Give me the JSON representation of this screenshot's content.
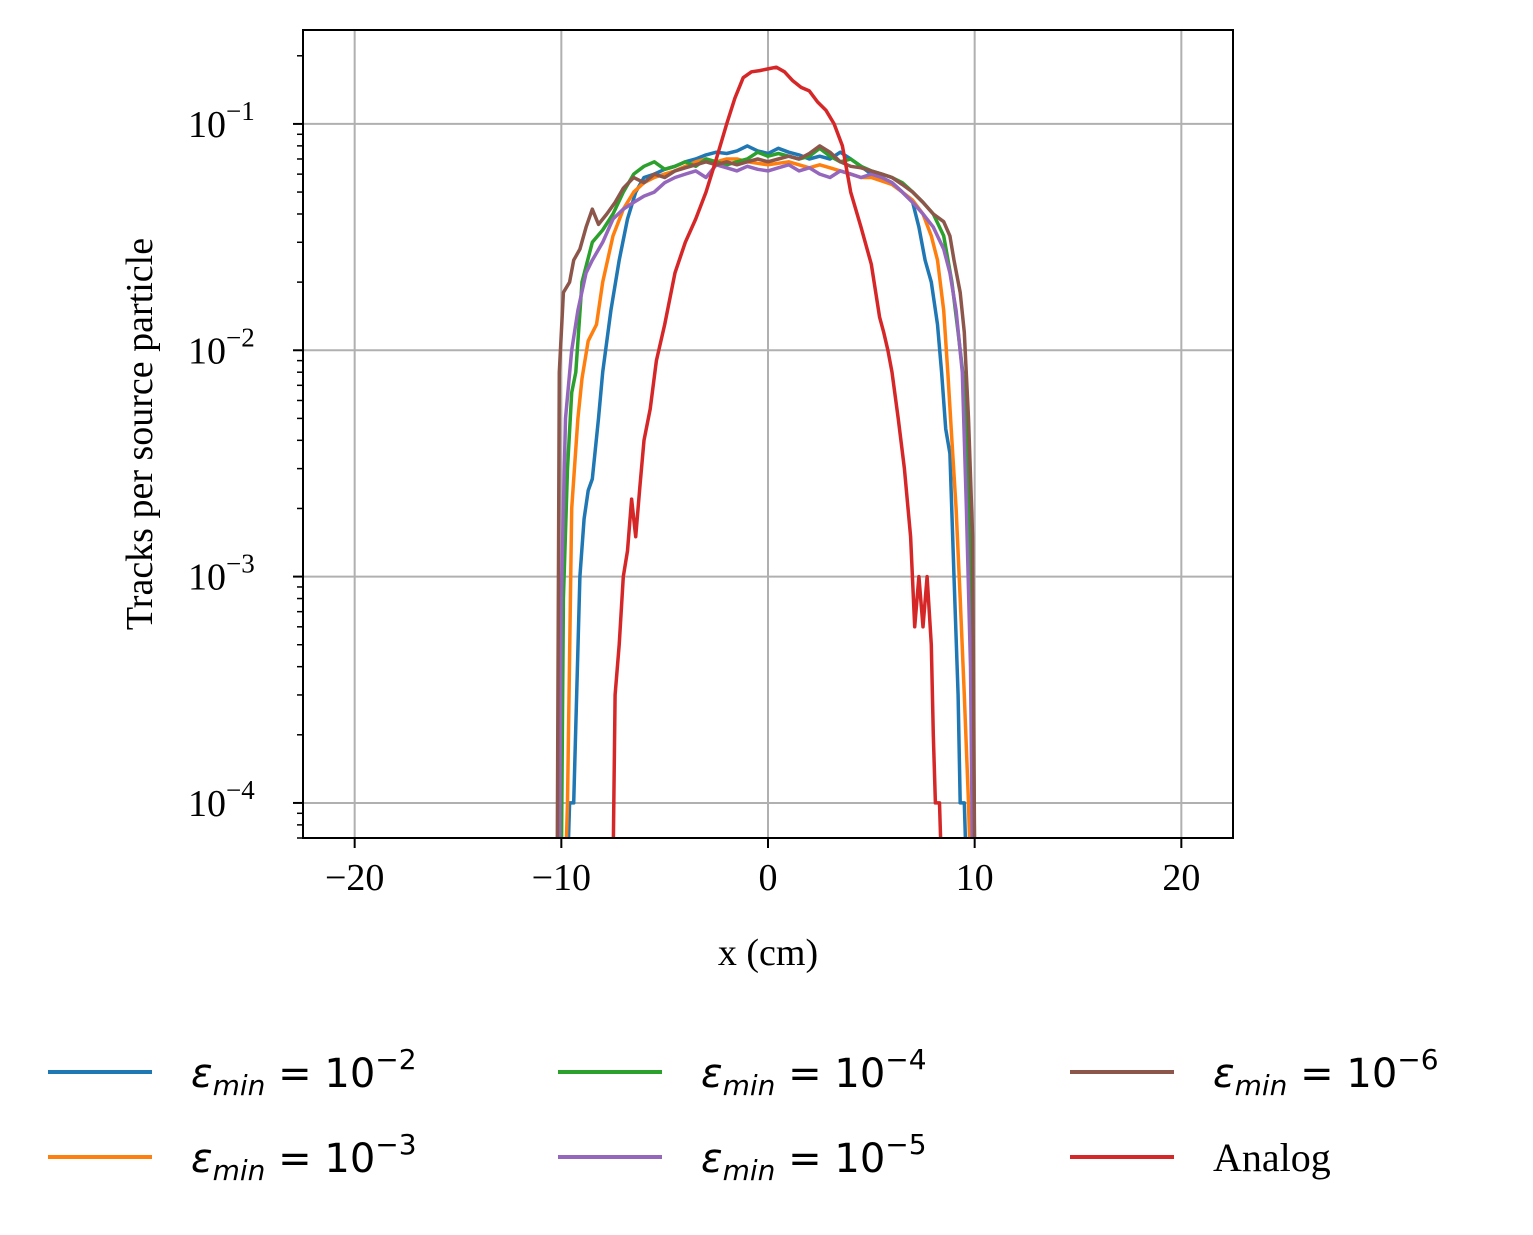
{
  "chart_data": {
    "type": "line",
    "title": "",
    "xlabel": "x (cm)",
    "ylabel": "Tracks per source particle",
    "xlim": [
      -22.5,
      22.5
    ],
    "ylim": [
      7e-05,
      0.26
    ],
    "yscale": "log",
    "grid": true,
    "x_ticks": [
      -20,
      -10,
      0,
      10,
      20
    ],
    "x_tick_labels": [
      "−20",
      "−10",
      "0",
      "10",
      "20"
    ],
    "y_ticks": [
      {
        "value": 0.1,
        "base": "10",
        "exp": "−1"
      },
      {
        "value": 0.01,
        "base": "10",
        "exp": "−2"
      },
      {
        "value": 0.001,
        "base": "10",
        "exp": "−3"
      },
      {
        "value": 0.0001,
        "base": "10",
        "exp": "−4"
      }
    ],
    "legend_placement": "below",
    "legend_columns": 3,
    "series": [
      {
        "name": "εmin = 10⁻²",
        "label_symbol": "ε",
        "label_sub": "min",
        "label_text": " = 10",
        "label_exp": "−2",
        "color": "#1f77b4",
        "points": [
          [
            -9.7,
            5e-05
          ],
          [
            -9.6,
            0.0001
          ],
          [
            -9.4,
            0.0001
          ],
          [
            -9.1,
            0.001
          ],
          [
            -8.9,
            0.0018
          ],
          [
            -8.7,
            0.0024
          ],
          [
            -8.5,
            0.0027
          ],
          [
            -8.2,
            0.005
          ],
          [
            -8.0,
            0.008
          ],
          [
            -7.6,
            0.015
          ],
          [
            -7.2,
            0.025
          ],
          [
            -6.8,
            0.038
          ],
          [
            -6.4,
            0.05
          ],
          [
            -6.0,
            0.058
          ],
          [
            -5.5,
            0.06
          ],
          [
            -5.0,
            0.063
          ],
          [
            -4.5,
            0.065
          ],
          [
            -4.0,
            0.068
          ],
          [
            -3.5,
            0.07
          ],
          [
            -3.0,
            0.073
          ],
          [
            -2.5,
            0.075
          ],
          [
            -2.0,
            0.074
          ],
          [
            -1.5,
            0.076
          ],
          [
            -1.0,
            0.08
          ],
          [
            -0.5,
            0.076
          ],
          [
            0.0,
            0.074
          ],
          [
            0.5,
            0.078
          ],
          [
            1.0,
            0.075
          ],
          [
            1.5,
            0.073
          ],
          [
            2.0,
            0.07
          ],
          [
            2.5,
            0.072
          ],
          [
            3.0,
            0.07
          ],
          [
            3.5,
            0.075
          ],
          [
            4.0,
            0.07
          ],
          [
            4.5,
            0.065
          ],
          [
            5.0,
            0.06
          ],
          [
            5.5,
            0.058
          ],
          [
            6.0,
            0.055
          ],
          [
            6.5,
            0.05
          ],
          [
            7.0,
            0.045
          ],
          [
            7.3,
            0.035
          ],
          [
            7.6,
            0.025
          ],
          [
            7.9,
            0.02
          ],
          [
            8.2,
            0.013
          ],
          [
            8.4,
            0.008
          ],
          [
            8.6,
            0.0045
          ],
          [
            8.8,
            0.0035
          ],
          [
            9.0,
            0.001
          ],
          [
            9.2,
            0.0003
          ],
          [
            9.3,
            0.0001
          ],
          [
            9.5,
            0.0001
          ],
          [
            9.6,
            5e-05
          ]
        ]
      },
      {
        "name": "εmin = 10⁻³",
        "label_symbol": "ε",
        "label_sub": "min",
        "label_text": " = 10",
        "label_exp": "−3",
        "color": "#ff7f0e",
        "points": [
          [
            -9.8,
            5e-05
          ],
          [
            -9.7,
            0.0001
          ],
          [
            -9.5,
            0.002
          ],
          [
            -9.2,
            0.005
          ],
          [
            -9.0,
            0.0075
          ],
          [
            -8.7,
            0.011
          ],
          [
            -8.3,
            0.013
          ],
          [
            -8.0,
            0.02
          ],
          [
            -7.5,
            0.032
          ],
          [
            -7.0,
            0.042
          ],
          [
            -6.5,
            0.05
          ],
          [
            -6.0,
            0.055
          ],
          [
            -5.5,
            0.058
          ],
          [
            -5.0,
            0.06
          ],
          [
            -4.5,
            0.062
          ],
          [
            -4.0,
            0.065
          ],
          [
            -3.5,
            0.068
          ],
          [
            -3.0,
            0.07
          ],
          [
            -2.5,
            0.068
          ],
          [
            -2.0,
            0.07
          ],
          [
            -1.5,
            0.07
          ],
          [
            -1.0,
            0.068
          ],
          [
            -0.5,
            0.067
          ],
          [
            0.0,
            0.066
          ],
          [
            0.5,
            0.067
          ],
          [
            1.0,
            0.068
          ],
          [
            1.5,
            0.066
          ],
          [
            2.0,
            0.064
          ],
          [
            2.5,
            0.066
          ],
          [
            3.0,
            0.064
          ],
          [
            3.5,
            0.062
          ],
          [
            4.0,
            0.06
          ],
          [
            4.5,
            0.058
          ],
          [
            5.0,
            0.058
          ],
          [
            5.5,
            0.056
          ],
          [
            6.0,
            0.054
          ],
          [
            6.5,
            0.05
          ],
          [
            7.0,
            0.046
          ],
          [
            7.5,
            0.04
          ],
          [
            7.9,
            0.032
          ],
          [
            8.2,
            0.025
          ],
          [
            8.5,
            0.015
          ],
          [
            8.7,
            0.008
          ],
          [
            8.9,
            0.004
          ],
          [
            9.1,
            0.002
          ],
          [
            9.3,
            0.0008
          ],
          [
            9.5,
            0.0003
          ],
          [
            9.7,
            0.0001
          ],
          [
            9.8,
            5e-05
          ]
        ]
      },
      {
        "name": "εmin = 10⁻⁴",
        "label_symbol": "ε",
        "label_sub": "min",
        "label_text": " = 10",
        "label_exp": "−4",
        "color": "#2ca02c",
        "points": [
          [
            -10.0,
            5e-05
          ],
          [
            -9.9,
            0.0008
          ],
          [
            -9.7,
            0.003
          ],
          [
            -9.5,
            0.0065
          ],
          [
            -9.3,
            0.008
          ],
          [
            -9.0,
            0.02
          ],
          [
            -8.5,
            0.03
          ],
          [
            -8.0,
            0.034
          ],
          [
            -7.5,
            0.04
          ],
          [
            -7.0,
            0.05
          ],
          [
            -6.5,
            0.06
          ],
          [
            -6.0,
            0.065
          ],
          [
            -5.5,
            0.068
          ],
          [
            -5.0,
            0.063
          ],
          [
            -4.5,
            0.065
          ],
          [
            -4.0,
            0.068
          ],
          [
            -3.5,
            0.065
          ],
          [
            -3.0,
            0.07
          ],
          [
            -2.5,
            0.068
          ],
          [
            -2.0,
            0.066
          ],
          [
            -1.5,
            0.068
          ],
          [
            -1.0,
            0.07
          ],
          [
            -0.5,
            0.075
          ],
          [
            0.0,
            0.072
          ],
          [
            0.5,
            0.074
          ],
          [
            1.0,
            0.072
          ],
          [
            1.5,
            0.07
          ],
          [
            2.0,
            0.072
          ],
          [
            2.5,
            0.078
          ],
          [
            3.0,
            0.072
          ],
          [
            3.5,
            0.068
          ],
          [
            4.0,
            0.07
          ],
          [
            4.5,
            0.065
          ],
          [
            5.0,
            0.062
          ],
          [
            5.5,
            0.06
          ],
          [
            6.0,
            0.058
          ],
          [
            6.5,
            0.055
          ],
          [
            7.0,
            0.05
          ],
          [
            7.5,
            0.045
          ],
          [
            8.0,
            0.04
          ],
          [
            8.5,
            0.032
          ],
          [
            8.9,
            0.02
          ],
          [
            9.2,
            0.012
          ],
          [
            9.5,
            0.007
          ],
          [
            9.7,
            0.002
          ],
          [
            9.9,
            0.0005
          ],
          [
            10.0,
            5e-05
          ]
        ]
      },
      {
        "name": "εmin = 10⁻⁵",
        "label_symbol": "ε",
        "label_sub": "min",
        "label_text": " = 10",
        "label_exp": "−5",
        "color": "#9467bd",
        "points": [
          [
            -10.1,
            5e-05
          ],
          [
            -10.0,
            0.0008
          ],
          [
            -9.8,
            0.005
          ],
          [
            -9.5,
            0.01
          ],
          [
            -9.2,
            0.015
          ],
          [
            -8.8,
            0.022
          ],
          [
            -8.5,
            0.025
          ],
          [
            -8.0,
            0.03
          ],
          [
            -7.5,
            0.038
          ],
          [
            -7.0,
            0.042
          ],
          [
            -6.5,
            0.045
          ],
          [
            -6.0,
            0.048
          ],
          [
            -5.5,
            0.05
          ],
          [
            -5.0,
            0.055
          ],
          [
            -4.5,
            0.058
          ],
          [
            -4.0,
            0.06
          ],
          [
            -3.5,
            0.062
          ],
          [
            -3.0,
            0.058
          ],
          [
            -2.5,
            0.066
          ],
          [
            -2.0,
            0.064
          ],
          [
            -1.5,
            0.062
          ],
          [
            -1.0,
            0.065
          ],
          [
            -0.5,
            0.063
          ],
          [
            0.0,
            0.062
          ],
          [
            0.5,
            0.064
          ],
          [
            1.0,
            0.066
          ],
          [
            1.5,
            0.062
          ],
          [
            2.0,
            0.064
          ],
          [
            2.5,
            0.06
          ],
          [
            3.0,
            0.058
          ],
          [
            3.5,
            0.062
          ],
          [
            4.0,
            0.06
          ],
          [
            4.5,
            0.058
          ],
          [
            5.0,
            0.06
          ],
          [
            5.5,
            0.058
          ],
          [
            6.0,
            0.055
          ],
          [
            6.5,
            0.05
          ],
          [
            7.0,
            0.045
          ],
          [
            7.5,
            0.04
          ],
          [
            8.0,
            0.035
          ],
          [
            8.5,
            0.028
          ],
          [
            8.8,
            0.022
          ],
          [
            9.1,
            0.015
          ],
          [
            9.4,
            0.008
          ],
          [
            9.6,
            0.002
          ],
          [
            9.8,
            0.0004
          ],
          [
            9.9,
            5e-05
          ]
        ]
      },
      {
        "name": "εmin = 10⁻⁶",
        "label_symbol": "ε",
        "label_sub": "min",
        "label_text": " = 10",
        "label_exp": "−6",
        "color": "#8c564b",
        "points": [
          [
            -10.2,
            5e-05
          ],
          [
            -10.1,
            0.008
          ],
          [
            -9.9,
            0.018
          ],
          [
            -9.6,
            0.02
          ],
          [
            -9.4,
            0.025
          ],
          [
            -9.1,
            0.028
          ],
          [
            -8.8,
            0.035
          ],
          [
            -8.5,
            0.042
          ],
          [
            -8.2,
            0.036
          ],
          [
            -7.8,
            0.04
          ],
          [
            -7.4,
            0.045
          ],
          [
            -7.0,
            0.052
          ],
          [
            -6.5,
            0.058
          ],
          [
            -6.0,
            0.055
          ],
          [
            -5.5,
            0.06
          ],
          [
            -5.0,
            0.058
          ],
          [
            -4.5,
            0.062
          ],
          [
            -4.0,
            0.064
          ],
          [
            -3.5,
            0.066
          ],
          [
            -3.0,
            0.068
          ],
          [
            -2.5,
            0.066
          ],
          [
            -2.0,
            0.068
          ],
          [
            -1.5,
            0.066
          ],
          [
            -1.0,
            0.068
          ],
          [
            -0.5,
            0.07
          ],
          [
            0.0,
            0.068
          ],
          [
            0.5,
            0.07
          ],
          [
            1.0,
            0.072
          ],
          [
            1.5,
            0.07
          ],
          [
            2.0,
            0.074
          ],
          [
            2.5,
            0.08
          ],
          [
            3.0,
            0.075
          ],
          [
            3.5,
            0.068
          ],
          [
            4.0,
            0.065
          ],
          [
            4.5,
            0.064
          ],
          [
            5.0,
            0.062
          ],
          [
            5.5,
            0.06
          ],
          [
            6.0,
            0.058
          ],
          [
            6.5,
            0.054
          ],
          [
            7.0,
            0.05
          ],
          [
            7.5,
            0.045
          ],
          [
            8.0,
            0.04
          ],
          [
            8.5,
            0.037
          ],
          [
            8.8,
            0.032
          ],
          [
            9.0,
            0.025
          ],
          [
            9.3,
            0.018
          ],
          [
            9.5,
            0.012
          ],
          [
            9.7,
            0.005
          ],
          [
            9.9,
            0.0015
          ],
          [
            10.0,
            5e-05
          ]
        ]
      },
      {
        "name": "Analog",
        "label_text": "Analog",
        "color": "#d62728",
        "points": [
          [
            -7.5,
            5e-05
          ],
          [
            -7.4,
            0.0003
          ],
          [
            -7.2,
            0.0005
          ],
          [
            -7.0,
            0.001
          ],
          [
            -6.8,
            0.0013
          ],
          [
            -6.6,
            0.0022
          ],
          [
            -6.4,
            0.0015
          ],
          [
            -6.2,
            0.0025
          ],
          [
            -6.0,
            0.004
          ],
          [
            -5.7,
            0.0055
          ],
          [
            -5.4,
            0.009
          ],
          [
            -5.0,
            0.013
          ],
          [
            -4.5,
            0.022
          ],
          [
            -4.0,
            0.03
          ],
          [
            -3.5,
            0.038
          ],
          [
            -3.0,
            0.05
          ],
          [
            -2.5,
            0.07
          ],
          [
            -2.0,
            0.1
          ],
          [
            -1.6,
            0.13
          ],
          [
            -1.2,
            0.16
          ],
          [
            -0.8,
            0.17
          ],
          [
            -0.4,
            0.172
          ],
          [
            0.0,
            0.175
          ],
          [
            0.4,
            0.178
          ],
          [
            0.8,
            0.17
          ],
          [
            1.2,
            0.155
          ],
          [
            1.6,
            0.145
          ],
          [
            2.0,
            0.14
          ],
          [
            2.4,
            0.125
          ],
          [
            2.8,
            0.115
          ],
          [
            3.2,
            0.1
          ],
          [
            3.6,
            0.08
          ],
          [
            4.0,
            0.05
          ],
          [
            4.5,
            0.035
          ],
          [
            5.0,
            0.024
          ],
          [
            5.4,
            0.014
          ],
          [
            5.6,
            0.012
          ],
          [
            5.8,
            0.01
          ],
          [
            6.0,
            0.008
          ],
          [
            6.3,
            0.005
          ],
          [
            6.6,
            0.003
          ],
          [
            6.9,
            0.0015
          ],
          [
            7.1,
            0.0006
          ],
          [
            7.3,
            0.001
          ],
          [
            7.5,
            0.0006
          ],
          [
            7.7,
            0.001
          ],
          [
            7.9,
            0.0005
          ],
          [
            8.0,
            0.0002
          ],
          [
            8.1,
            0.0001
          ],
          [
            8.3,
            0.0001
          ],
          [
            8.4,
            5e-05
          ]
        ]
      }
    ]
  }
}
